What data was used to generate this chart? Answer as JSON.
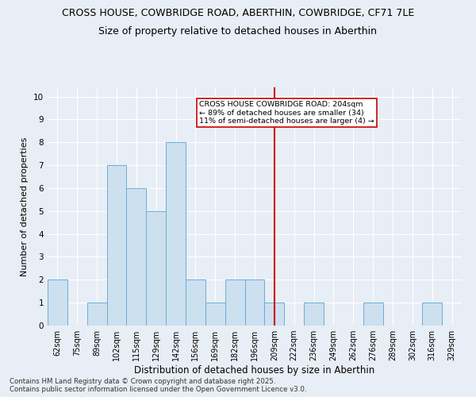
{
  "title_line1": "CROSS HOUSE, COWBRIDGE ROAD, ABERTHIN, COWBRIDGE, CF71 7LE",
  "title_line2": "Size of property relative to detached houses in Aberthin",
  "xlabel": "Distribution of detached houses by size in Aberthin",
  "ylabel": "Number of detached properties",
  "footer": "Contains HM Land Registry data © Crown copyright and database right 2025.\nContains public sector information licensed under the Open Government Licence v3.0.",
  "bins": [
    "62sqm",
    "75sqm",
    "89sqm",
    "102sqm",
    "115sqm",
    "129sqm",
    "142sqm",
    "156sqm",
    "169sqm",
    "182sqm",
    "196sqm",
    "209sqm",
    "222sqm",
    "236sqm",
    "249sqm",
    "262sqm",
    "276sqm",
    "289sqm",
    "302sqm",
    "316sqm",
    "329sqm"
  ],
  "values": [
    2,
    0,
    1,
    7,
    6,
    5,
    8,
    2,
    1,
    2,
    2,
    1,
    0,
    1,
    0,
    0,
    1,
    0,
    0,
    1,
    0
  ],
  "bar_color": "#cce0f0",
  "bar_edge_color": "#6baed6",
  "vline_x": 11,
  "vline_color": "#cc0000",
  "annotation_text": "CROSS HOUSE COWBRIDGE ROAD: 204sqm\n← 89% of detached houses are smaller (34)\n11% of semi-detached houses are larger (4) →",
  "annotation_box_color": "#ffffff",
  "annotation_box_edge": "#cc0000",
  "ylim": [
    0,
    10.4
  ],
  "yticks": [
    0,
    1,
    2,
    3,
    4,
    5,
    6,
    7,
    8,
    9,
    10
  ],
  "background_color": "#e8eef5",
  "plot_background": "#e8eef5",
  "grid_color": "#ffffff",
  "title_fontsize": 9,
  "subtitle_fontsize": 9,
  "tick_fontsize": 7,
  "label_fontsize": 8.5,
  "footer_fontsize": 6.2
}
